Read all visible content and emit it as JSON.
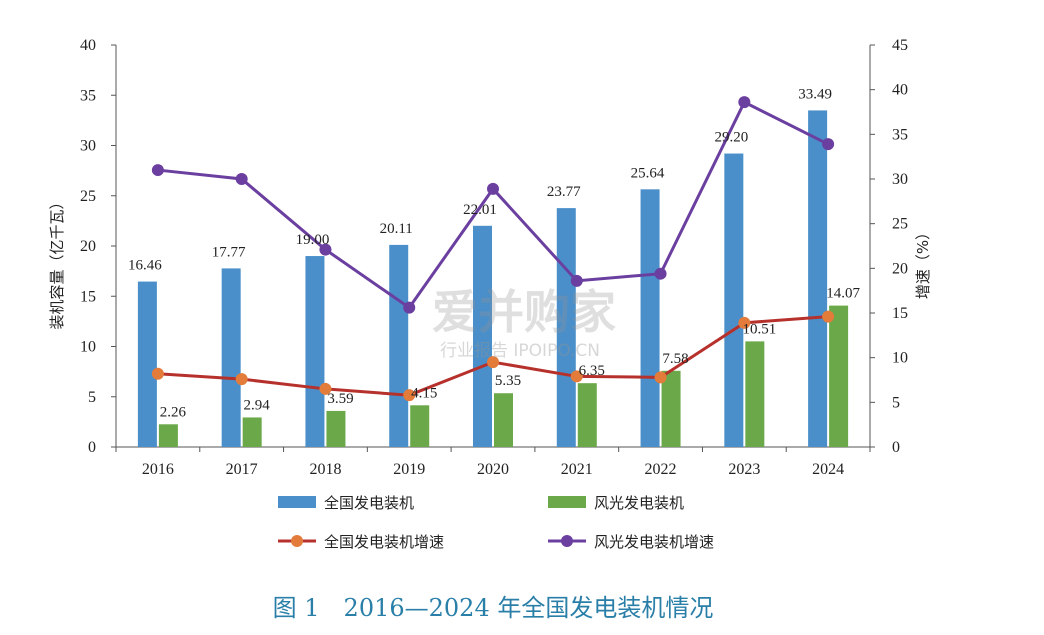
{
  "chart_data": {
    "type": "bar",
    "categories": [
      "2016",
      "2017",
      "2018",
      "2019",
      "2020",
      "2021",
      "2022",
      "2023",
      "2024"
    ],
    "series": [
      {
        "name": "全国发电装机",
        "kind": "bar",
        "axis": "left",
        "color": "#4a8fc9",
        "values": [
          16.46,
          17.77,
          19.0,
          20.11,
          22.01,
          23.77,
          25.64,
          29.2,
          33.49
        ]
      },
      {
        "name": "风光发电装机",
        "kind": "bar",
        "axis": "left",
        "color": "#6ba84a",
        "values": [
          2.26,
          2.94,
          3.59,
          4.15,
          5.35,
          6.35,
          7.58,
          10.51,
          14.07
        ]
      },
      {
        "name": "全国发电装机增速",
        "kind": "line",
        "axis": "right",
        "color": "#b7312c",
        "marker_color": "#e37b3b",
        "values": [
          8.2,
          7.6,
          6.5,
          5.8,
          9.5,
          7.9,
          7.8,
          13.9,
          14.6
        ]
      },
      {
        "name": "风光发电装机增速",
        "kind": "line",
        "axis": "right",
        "color": "#6b3fa0",
        "marker_color": "#6b3fa0",
        "values": [
          31.0,
          30.0,
          22.1,
          15.6,
          28.9,
          18.6,
          19.4,
          38.6,
          33.9
        ]
      }
    ],
    "data_labels": {
      "全国发电装机": [
        "16.46",
        "17.77",
        "19.00",
        "20.11",
        "22.01",
        "23.77",
        "25.64",
        "29.20",
        "33.49"
      ],
      "风光发电装机": [
        "2.26",
        "2.94",
        "3.59",
        "4.15",
        "5.35",
        "6.35",
        "7.58",
        "10.51",
        "14.07"
      ]
    },
    "ylabel": "装机容量（亿千瓦）",
    "ylabel_right": "增速（%）",
    "ylim": [
      0,
      40
    ],
    "yticks": [
      0,
      5,
      10,
      15,
      20,
      25,
      30,
      35,
      40
    ],
    "ylim_right": [
      0,
      45
    ],
    "yticks_right": [
      0,
      5,
      10,
      15,
      20,
      25,
      30,
      35,
      40,
      45
    ],
    "grid": false,
    "legend_position": "bottom",
    "caption": "图 1　2016—2024 年全国发电装机情况"
  },
  "watermark": {
    "main": "爱并购家",
    "sub": "行业报告 IPOIPO.CN"
  }
}
